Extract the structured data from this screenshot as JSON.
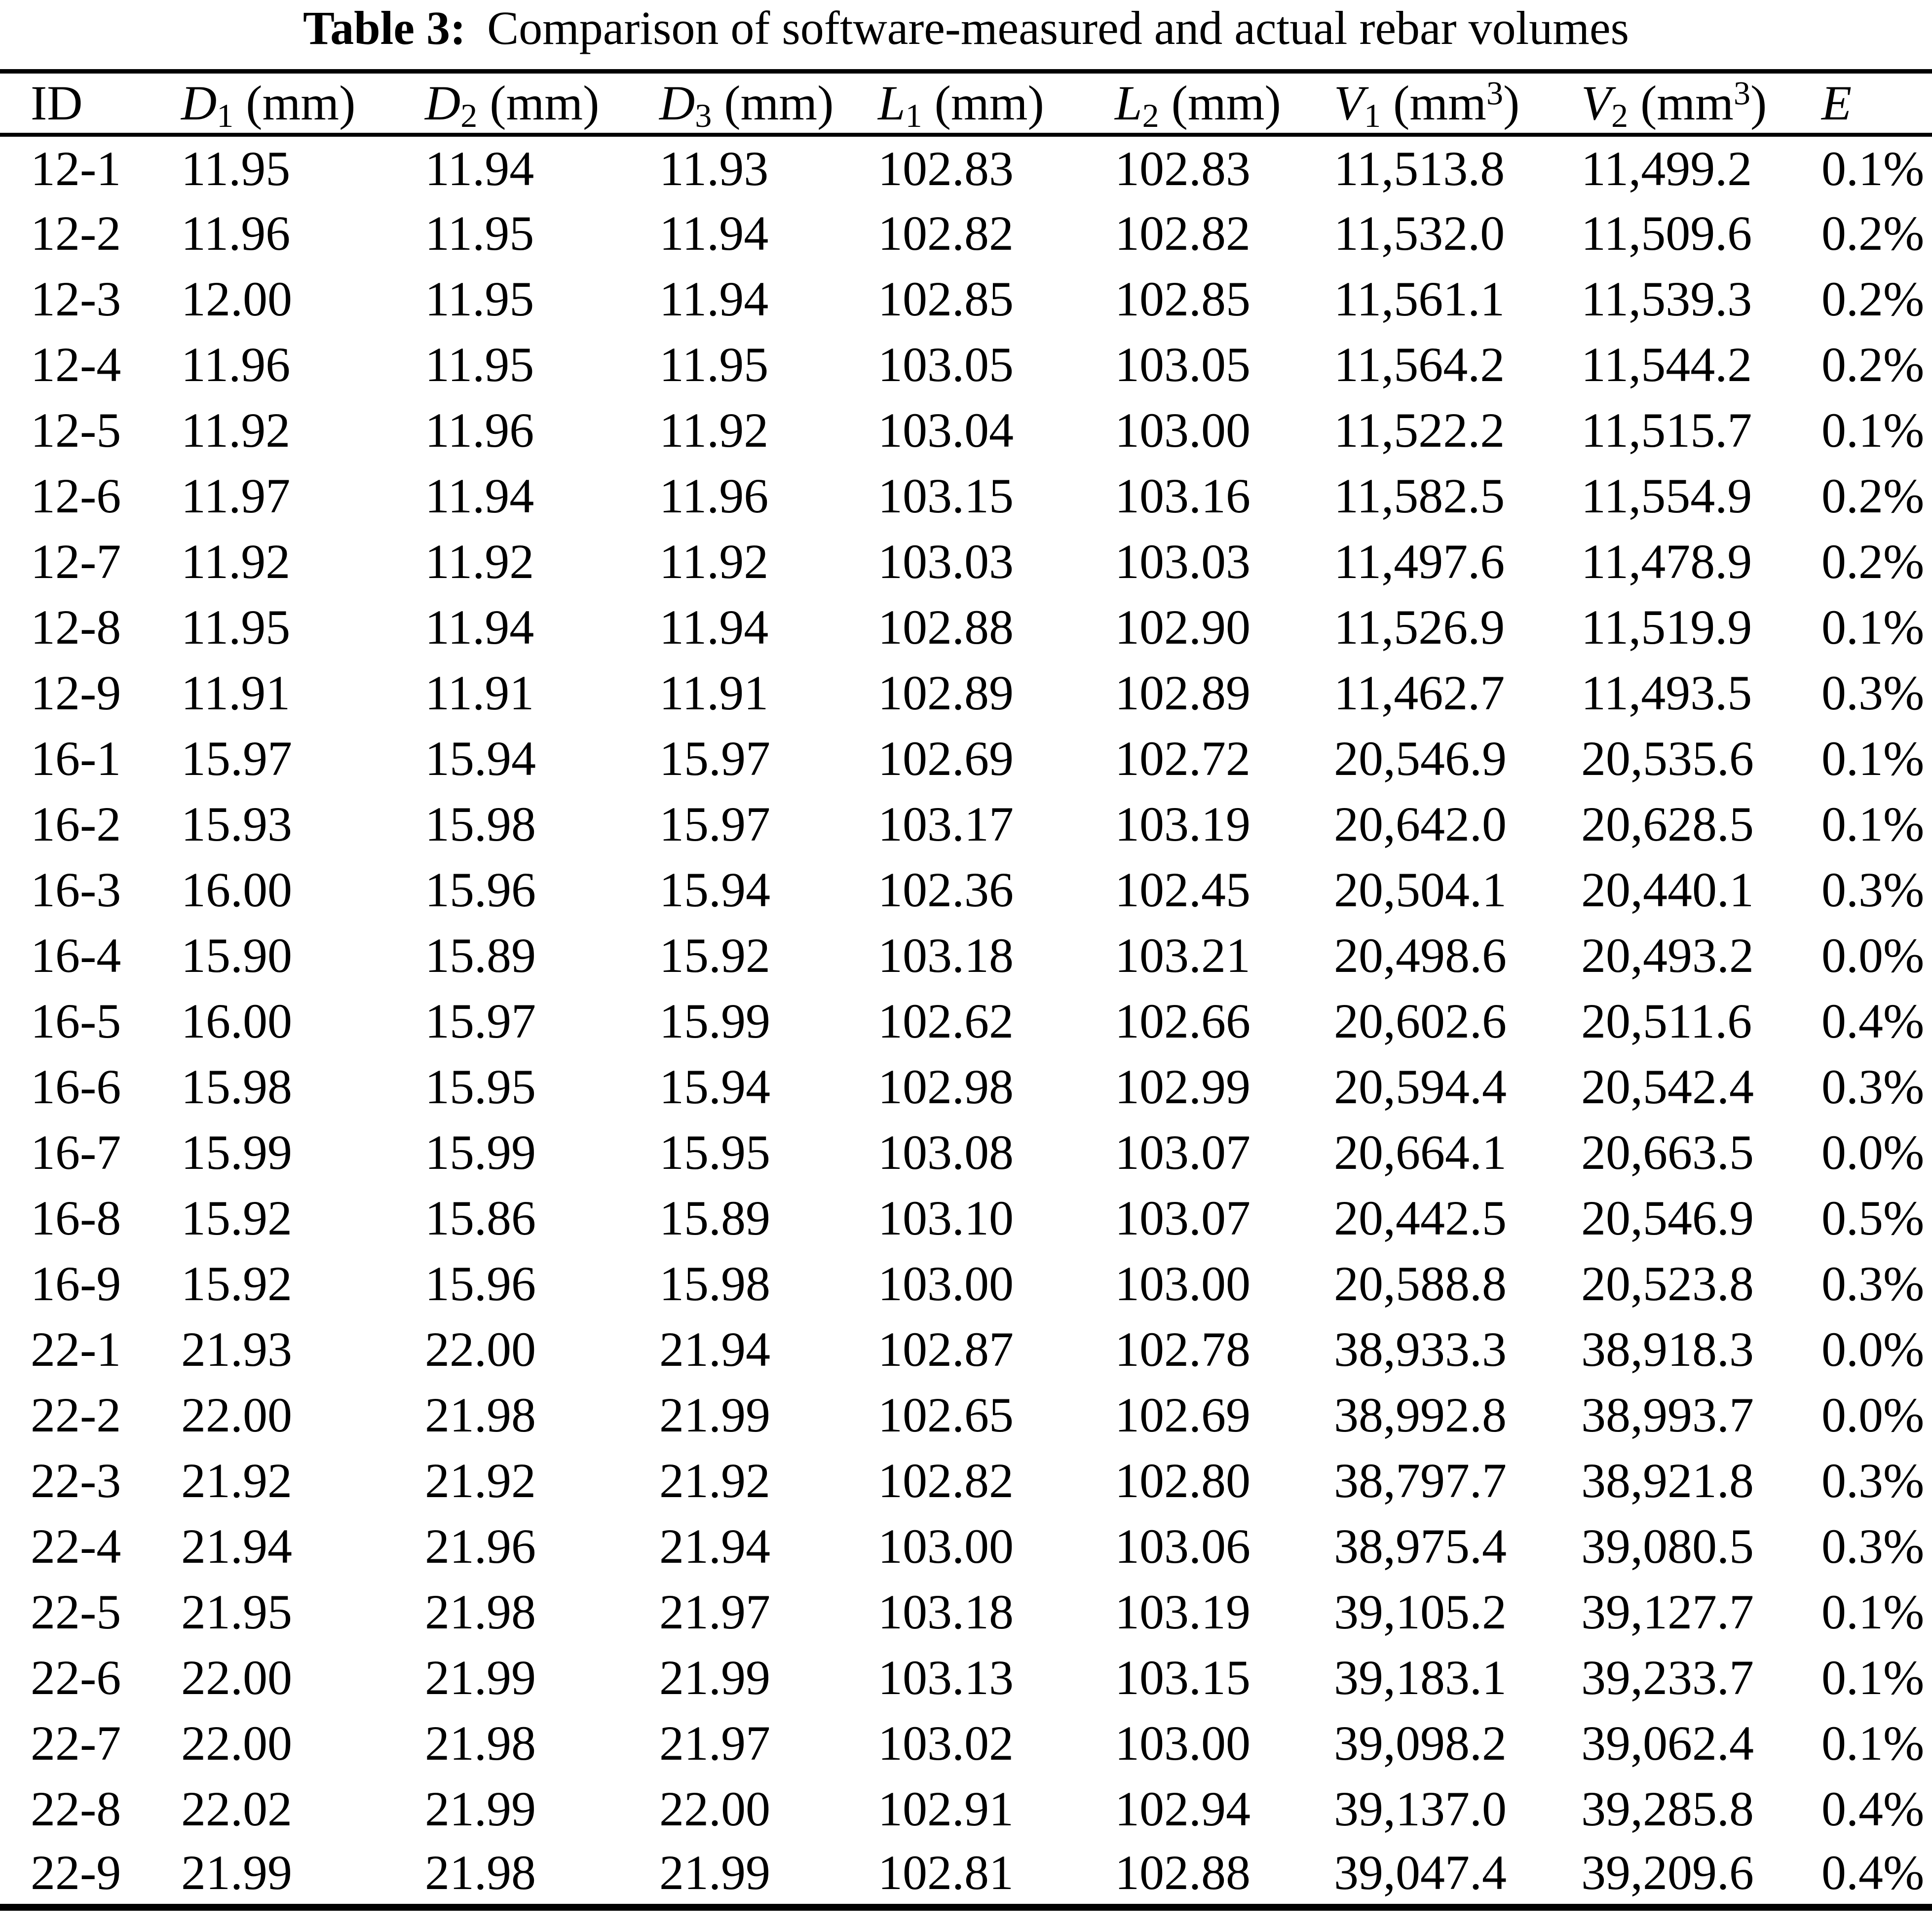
{
  "title": {
    "label": "Table 3:",
    "text": "Comparison of software-measured and actual rebar volumes"
  },
  "chart_data": {
    "type": "table",
    "title": "Comparison of software-measured and actual rebar volumes",
    "columns": [
      "ID",
      "D1 (mm)",
      "D2 (mm)",
      "D3 (mm)",
      "L1 (mm)",
      "L2 (mm)",
      "V1 (mm3)",
      "V2 (mm3)",
      "E"
    ],
    "rows_ref": "table.rows"
  },
  "table": {
    "columns": [
      {
        "name": "ID",
        "italic": false,
        "sub": "",
        "unit": "",
        "power": ""
      },
      {
        "name": "D",
        "italic": true,
        "sub": "1",
        "unit": "mm",
        "power": ""
      },
      {
        "name": "D",
        "italic": true,
        "sub": "2",
        "unit": "mm",
        "power": ""
      },
      {
        "name": "D",
        "italic": true,
        "sub": "3",
        "unit": "mm",
        "power": ""
      },
      {
        "name": "L",
        "italic": true,
        "sub": "1",
        "unit": "mm",
        "power": ""
      },
      {
        "name": "L",
        "italic": true,
        "sub": "2",
        "unit": "mm",
        "power": ""
      },
      {
        "name": "V",
        "italic": true,
        "sub": "1",
        "unit": "mm",
        "power": "3"
      },
      {
        "name": "V",
        "italic": true,
        "sub": "2",
        "unit": "mm",
        "power": "3"
      },
      {
        "name": "E",
        "italic": true,
        "sub": "",
        "unit": "",
        "power": ""
      }
    ],
    "rows": [
      [
        "12-1",
        "11.95",
        "11.94",
        "11.93",
        "102.83",
        "102.83",
        "11,513.8",
        "11,499.2",
        "0.1%"
      ],
      [
        "12-2",
        "11.96",
        "11.95",
        "11.94",
        "102.82",
        "102.82",
        "11,532.0",
        "11,509.6",
        "0.2%"
      ],
      [
        "12-3",
        "12.00",
        "11.95",
        "11.94",
        "102.85",
        "102.85",
        "11,561.1",
        "11,539.3",
        "0.2%"
      ],
      [
        "12-4",
        "11.96",
        "11.95",
        "11.95",
        "103.05",
        "103.05",
        "11,564.2",
        "11,544.2",
        "0.2%"
      ],
      [
        "12-5",
        "11.92",
        "11.96",
        "11.92",
        "103.04",
        "103.00",
        "11,522.2",
        "11,515.7",
        "0.1%"
      ],
      [
        "12-6",
        "11.97",
        "11.94",
        "11.96",
        "103.15",
        "103.16",
        "11,582.5",
        "11,554.9",
        "0.2%"
      ],
      [
        "12-7",
        "11.92",
        "11.92",
        "11.92",
        "103.03",
        "103.03",
        "11,497.6",
        "11,478.9",
        "0.2%"
      ],
      [
        "12-8",
        "11.95",
        "11.94",
        "11.94",
        "102.88",
        "102.90",
        "11,526.9",
        "11,519.9",
        "0.1%"
      ],
      [
        "12-9",
        "11.91",
        "11.91",
        "11.91",
        "102.89",
        "102.89",
        "11,462.7",
        "11,493.5",
        "0.3%"
      ],
      [
        "16-1",
        "15.97",
        "15.94",
        "15.97",
        "102.69",
        "102.72",
        "20,546.9",
        "20,535.6",
        "0.1%"
      ],
      [
        "16-2",
        "15.93",
        "15.98",
        "15.97",
        "103.17",
        "103.19",
        "20,642.0",
        "20,628.5",
        "0.1%"
      ],
      [
        "16-3",
        "16.00",
        "15.96",
        "15.94",
        "102.36",
        "102.45",
        "20,504.1",
        "20,440.1",
        "0.3%"
      ],
      [
        "16-4",
        "15.90",
        "15.89",
        "15.92",
        "103.18",
        "103.21",
        "20,498.6",
        "20,493.2",
        "0.0%"
      ],
      [
        "16-5",
        "16.00",
        "15.97",
        "15.99",
        "102.62",
        "102.66",
        "20,602.6",
        "20,511.6",
        "0.4%"
      ],
      [
        "16-6",
        "15.98",
        "15.95",
        "15.94",
        "102.98",
        "102.99",
        "20,594.4",
        "20,542.4",
        "0.3%"
      ],
      [
        "16-7",
        "15.99",
        "15.99",
        "15.95",
        "103.08",
        "103.07",
        "20,664.1",
        "20,663.5",
        "0.0%"
      ],
      [
        "16-8",
        "15.92",
        "15.86",
        "15.89",
        "103.10",
        "103.07",
        "20,442.5",
        "20,546.9",
        "0.5%"
      ],
      [
        "16-9",
        "15.92",
        "15.96",
        "15.98",
        "103.00",
        "103.00",
        "20,588.8",
        "20,523.8",
        "0.3%"
      ],
      [
        "22-1",
        "21.93",
        "22.00",
        "21.94",
        "102.87",
        "102.78",
        "38,933.3",
        "38,918.3",
        "0.0%"
      ],
      [
        "22-2",
        "22.00",
        "21.98",
        "21.99",
        "102.65",
        "102.69",
        "38,992.8",
        "38,993.7",
        "0.0%"
      ],
      [
        "22-3",
        "21.92",
        "21.92",
        "21.92",
        "102.82",
        "102.80",
        "38,797.7",
        "38,921.8",
        "0.3%"
      ],
      [
        "22-4",
        "21.94",
        "21.96",
        "21.94",
        "103.00",
        "103.06",
        "38,975.4",
        "39,080.5",
        "0.3%"
      ],
      [
        "22-5",
        "21.95",
        "21.98",
        "21.97",
        "103.18",
        "103.19",
        "39,105.2",
        "39,127.7",
        "0.1%"
      ],
      [
        "22-6",
        "22.00",
        "21.99",
        "21.99",
        "103.13",
        "103.15",
        "39,183.1",
        "39,233.7",
        "0.1%"
      ],
      [
        "22-7",
        "22.00",
        "21.98",
        "21.97",
        "103.02",
        "103.00",
        "39,098.2",
        "39,062.4",
        "0.1%"
      ],
      [
        "22-8",
        "22.02",
        "21.99",
        "22.00",
        "102.91",
        "102.94",
        "39,137.0",
        "39,285.8",
        "0.4%"
      ],
      [
        "22-9",
        "21.99",
        "21.98",
        "21.99",
        "102.81",
        "102.88",
        "39,047.4",
        "39,209.6",
        "0.4%"
      ]
    ]
  }
}
